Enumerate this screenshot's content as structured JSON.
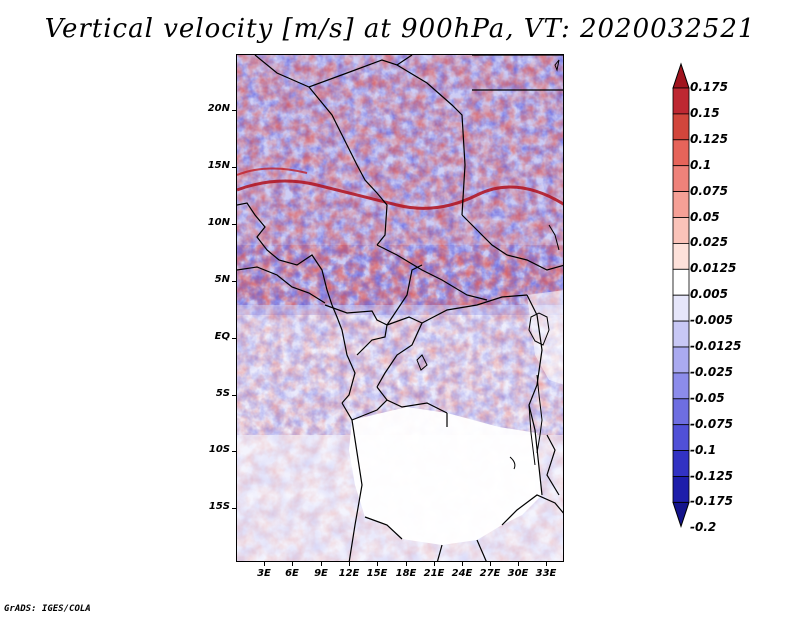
{
  "title": "Vertical velocity [m/s] at 900hPa, VT: 2020032521",
  "footer": "GrADS: IGES/COLA",
  "map": {
    "lat_labels": [
      "20N",
      "15N",
      "10N",
      "5N",
      "EQ",
      "5S",
      "10S",
      "15S"
    ],
    "lon_labels": [
      "3E",
      "6E",
      "9E",
      "12E",
      "15E",
      "18E",
      "21E",
      "24E",
      "27E",
      "30E",
      "33E"
    ]
  },
  "colorbar": {
    "labels": [
      "0.175",
      "0.15",
      "0.125",
      "0.1",
      "0.075",
      "0.05",
      "0.025",
      "0.0125",
      "0.005",
      "-0.005",
      "-0.0125",
      "-0.025",
      "-0.05",
      "-0.075",
      "-0.1",
      "-0.125",
      "-0.175",
      "-0.2"
    ],
    "colors": [
      "#a0141e",
      "#be2832",
      "#d2463c",
      "#e6645a",
      "#ee827a",
      "#f5a096",
      "#fac3b9",
      "#fde1da",
      "#ffffff",
      "#e6e6fa",
      "#c8c8f5",
      "#aaaaf0",
      "#8c8ceb",
      "#6e6ee1",
      "#5050d7",
      "#3232c3",
      "#1e1eaa",
      "#14148c"
    ]
  }
}
